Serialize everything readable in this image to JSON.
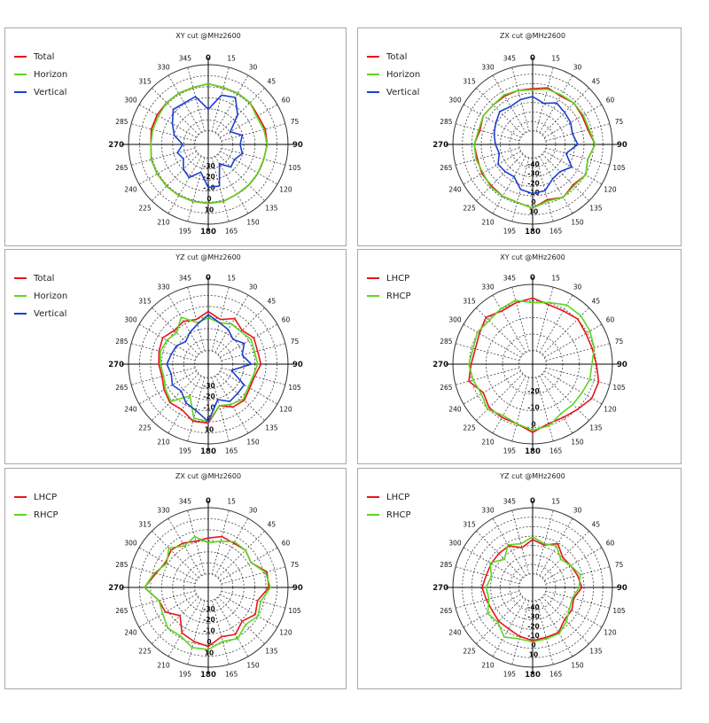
{
  "chart_data": [
    {
      "type": "polar-line",
      "title": "XY cut @MHz2600",
      "angle_labels": [
        "0",
        "15",
        "30",
        "45",
        "60",
        "75",
        "90",
        "105",
        "120",
        "135",
        "150",
        "165",
        "180",
        "195",
        "210",
        "225",
        "240",
        "265",
        "270",
        "285",
        "300",
        "315",
        "330",
        "345"
      ],
      "ring_labels": [
        "-30",
        "-20",
        "-10",
        "0",
        "10"
      ],
      "r_range": [
        -40,
        10
      ],
      "grid": true,
      "legend_placement": "top-left",
      "series": [
        {
          "name": "Total",
          "color": "#e8141a",
          "values": [
            -2,
            -3,
            -3,
            -3,
            -4,
            -3,
            -3,
            -4,
            -4,
            -4,
            -4,
            -3,
            -3,
            -3,
            -3,
            -3,
            -3,
            -3,
            -4,
            -3,
            -3,
            -3,
            -3,
            -3
          ]
        },
        {
          "name": "Horizon",
          "color": "#5cd61e",
          "values": [
            -2,
            -3,
            -3,
            -3,
            -5,
            -4,
            -3,
            -4,
            -4,
            -4,
            -4,
            -3,
            -3,
            -3,
            -3,
            -3,
            -3,
            -3,
            -4,
            -4,
            -4,
            -3,
            -3,
            -3
          ]
        },
        {
          "name": "Vertical",
          "color": "#1a3fd0",
          "values": [
            -18,
            -8,
            -6,
            -14,
            -24,
            -18,
            -20,
            -18,
            -21,
            -20,
            -26,
            -13,
            -13,
            -22,
            -16,
            -18,
            -22,
            -20,
            -24,
            -18,
            -14,
            -9,
            -10,
            -9
          ]
        }
      ]
    },
    {
      "type": "polar-line",
      "title": "ZX cut @MHz2600",
      "angle_labels": [
        "0",
        "15",
        "30",
        "45",
        "60",
        "75",
        "90",
        "105",
        "120",
        "135",
        "150",
        "165",
        "180",
        "195",
        "210",
        "225",
        "240",
        "265",
        "270",
        "285",
        "300",
        "315",
        "330",
        "345"
      ],
      "ring_labels": [
        "-40",
        "-30",
        "-20",
        "-10",
        "0",
        "10"
      ],
      "r_range": [
        -50,
        10
      ],
      "grid": true,
      "legend_placement": "top-left",
      "series": [
        {
          "name": "Total",
          "color": "#e8141a",
          "values": [
            -8,
            -6,
            -8,
            -6,
            -7,
            -7,
            -3,
            -7,
            -4,
            -7,
            -4,
            -7,
            -2,
            -5,
            -5,
            -6,
            -6,
            -7,
            -6,
            -9,
            -7,
            -8,
            -8,
            -8
          ]
        },
        {
          "name": "Horizon",
          "color": "#5cd61e",
          "values": [
            -9,
            -7,
            -7,
            -6,
            -6,
            -6,
            -3,
            -7,
            -4,
            -6,
            -4,
            -6,
            -2,
            -5,
            -5,
            -5,
            -7,
            -6,
            -6,
            -8,
            -7,
            -8,
            -7,
            -8
          ]
        },
        {
          "name": "Vertical",
          "color": "#1a3fd0",
          "values": [
            -14,
            -18,
            -14,
            -16,
            -17,
            -19,
            -16,
            -24,
            -16,
            -21,
            -20,
            -14,
            -13,
            -15,
            -22,
            -21,
            -20,
            -24,
            -22,
            -20,
            -18,
            -15,
            -17,
            -15
          ]
        }
      ]
    },
    {
      "type": "polar-line",
      "title": "YZ cut @MHz2600",
      "angle_labels": [
        "0",
        "15",
        "30",
        "45",
        "60",
        "75",
        "90",
        "105",
        "120",
        "135",
        "150",
        "165",
        "180",
        "195",
        "210",
        "225",
        "240",
        "265",
        "270",
        "285",
        "300",
        "315",
        "330",
        "345"
      ],
      "ring_labels": [
        "-30",
        "-20",
        "-10",
        "0",
        "10"
      ],
      "r_range": [
        -40,
        10
      ],
      "grid": true,
      "legend_placement": "top-left",
      "series": [
        {
          "name": "Total",
          "color": "#e8141a",
          "values": [
            -7,
            -11,
            -7,
            -10,
            -7,
            -8,
            -7,
            -10,
            -10,
            -8,
            -9,
            -13,
            -3,
            -3,
            -7,
            -6,
            -8,
            -10,
            -9,
            -8,
            -7,
            -10,
            -9,
            -11
          ]
        },
        {
          "name": "Horizon",
          "color": "#5cd61e",
          "values": [
            -11,
            -13,
            -11,
            -11,
            -9,
            -10,
            -9,
            -11,
            -11,
            -9,
            -11,
            -13,
            -4,
            -5,
            -17,
            -7,
            -9,
            -11,
            -10,
            -9,
            -10,
            -12,
            -6,
            -13
          ]
        },
        {
          "name": "Vertical",
          "color": "#1a3fd0",
          "values": [
            -9,
            -13,
            -15,
            -18,
            -14,
            -18,
            -13,
            -25,
            -14,
            -14,
            -13,
            -17,
            -4,
            -10,
            -12,
            -16,
            -14,
            -16,
            -14,
            -16,
            -17,
            -20,
            -17,
            -14
          ]
        }
      ]
    },
    {
      "type": "polar-line",
      "title": "XY cut @MHz2600",
      "angle_labels": [
        "0",
        "15",
        "30",
        "45",
        "60",
        "75",
        "90",
        "105",
        "120",
        "135",
        "150",
        "165",
        "180",
        "195",
        "210",
        "225",
        "240",
        "265",
        "270",
        "285",
        "300",
        "315",
        "330",
        "345"
      ],
      "ring_labels": [
        "-20",
        "-10",
        "0"
      ],
      "r_range": [
        -30,
        5
      ],
      "grid": true,
      "legend_placement": "top-left",
      "series": [
        {
          "name": "LHCP",
          "color": "#e8141a",
          "values": [
            -1,
            -3,
            -3,
            -2,
            -3,
            -3,
            -2,
            0,
            0,
            -2,
            -3,
            -3,
            0,
            -3,
            -3,
            -3,
            -5,
            -1,
            -3,
            -4,
            -3,
            -1,
            -3,
            -2
          ]
        },
        {
          "name": "RHCP",
          "color": "#5cd61e",
          "values": [
            -3,
            -2,
            0,
            0,
            -1,
            -2,
            -4,
            -4,
            -5,
            -5,
            -5,
            -2,
            -1,
            -3,
            -4,
            -2,
            -4,
            -3,
            -2,
            -3,
            -2,
            -3,
            -2,
            -1
          ]
        }
      ]
    },
    {
      "type": "polar-line",
      "title": "ZX cut @MHz2600",
      "angle_labels": [
        "0",
        "15",
        "30",
        "45",
        "60",
        "75",
        "90",
        "105",
        "120",
        "135",
        "150",
        "165",
        "180",
        "195",
        "210",
        "225",
        "240",
        "265",
        "270",
        "285",
        "300",
        "315",
        "330",
        "345"
      ],
      "ring_labels": [
        "-30",
        "-20",
        "-10",
        "0",
        "10"
      ],
      "r_range": [
        -40,
        10
      ],
      "grid": true,
      "legend_placement": "top-left",
      "series": [
        {
          "name": "LHCP",
          "color": "#e8141a",
          "values": [
            -9,
            -7,
            -8,
            -7,
            -9,
            -2,
            -2,
            -8,
            -6,
            -10,
            -6,
            -8,
            -3,
            -5,
            -7,
            -15,
            -9,
            -8,
            0,
            -6,
            -9,
            -7,
            -8,
            -10
          ]
        },
        {
          "name": "RHCP",
          "color": "#5cd61e",
          "values": [
            -12,
            -10,
            -7,
            -7,
            -9,
            -3,
            -1,
            -6,
            -4,
            -7,
            -3,
            -5,
            -1,
            -1,
            -5,
            -4,
            -7,
            -8,
            0,
            -5,
            -10,
            -5,
            -10,
            -7
          ]
        }
      ]
    },
    {
      "type": "polar-line",
      "title": "YZ cut @MHz2600",
      "angle_labels": [
        "0",
        "15",
        "30",
        "45",
        "60",
        "75",
        "90",
        "105",
        "120",
        "135",
        "150",
        "165",
        "180",
        "195",
        "210",
        "225",
        "240",
        "265",
        "270",
        "285",
        "300",
        "315",
        "330",
        "345"
      ],
      "ring_labels": [
        "-40",
        "-30",
        "-20",
        "-10",
        "0",
        "10"
      ],
      "r_range": [
        -50,
        10
      ],
      "grid": true,
      "legend_placement": "top-left",
      "series": [
        {
          "name": "LHCP",
          "color": "#e8141a",
          "values": [
            -14,
            -17,
            -12,
            -18,
            -17,
            -15,
            -13,
            -18,
            -16,
            -16,
            -11,
            -11,
            -10,
            -12,
            -14,
            -14,
            -15,
            -14,
            -12,
            -14,
            -14,
            -14,
            -14,
            -19
          ]
        },
        {
          "name": "RHCP",
          "color": "#5cd61e",
          "values": [
            -12,
            -16,
            -14,
            -20,
            -17,
            -13,
            -15,
            -19,
            -18,
            -14,
            -10,
            -10,
            -9,
            -10,
            -7,
            -13,
            -11,
            -16,
            -15,
            -18,
            -13,
            -20,
            -13,
            -16
          ]
        }
      ]
    }
  ]
}
